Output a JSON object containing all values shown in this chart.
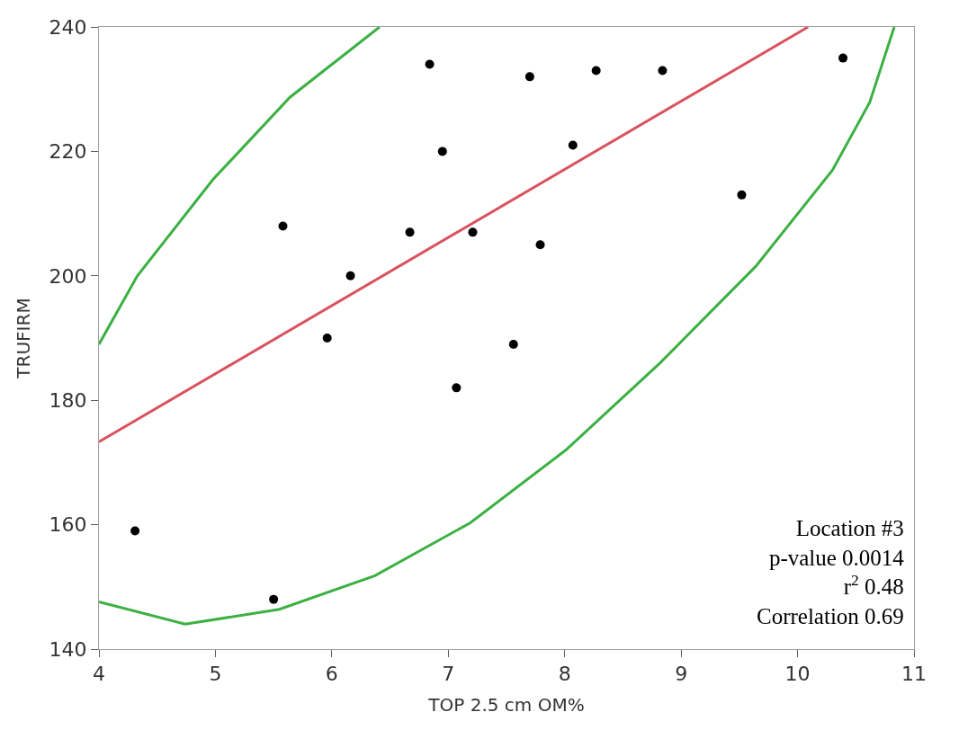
{
  "chart_data": {
    "type": "scatter",
    "xlabel": "TOP 2.5 cm OM%",
    "ylabel": "TRUFIRM",
    "xlim": [
      4,
      11
    ],
    "xticks": [
      4,
      5,
      6,
      7,
      8,
      9,
      10,
      11
    ],
    "ylim": [
      140,
      240
    ],
    "yticks": [
      140,
      160,
      180,
      200,
      220,
      240
    ],
    "series": [
      {
        "type": "line",
        "color": "#3cb043",
        "marker": "none",
        "x": [
          4,
          4.33,
          4.98,
          5.64,
          6.41,
          null,
          4,
          4.74,
          5.55,
          6.37,
          7.19,
          8.01,
          8.82,
          9.64,
          10.3,
          10.62,
          10.83
        ],
        "values": [
          189,
          200,
          215.5,
          228.7,
          240,
          null,
          147.6,
          144,
          146.4,
          151.8,
          160.3,
          172,
          186,
          201.5,
          217,
          227.9,
          240
        ]
      },
      {
        "type": "line",
        "color": "#d9535f",
        "marker": "none",
        "x": [
          4,
          10.09
        ],
        "values": [
          173.3,
          240
        ]
      },
      {
        "color": "#000000",
        "marker": "circle",
        "x": [
          4.31,
          5.5,
          5.58,
          5.96,
          6.16,
          6.67,
          6.84,
          6.95,
          7.07,
          7.21,
          7.56,
          7.7,
          7.79,
          8.07,
          8.27,
          8.84,
          9.52,
          10.39
        ],
        "values": [
          159,
          148,
          208,
          190,
          200,
          207,
          234,
          220,
          182,
          207,
          189,
          232,
          205,
          221,
          233,
          233,
          213,
          235
        ]
      }
    ],
    "annotations": [
      "Location #3",
      "p-value 0.0014",
      "r$^{2}$ 0.48",
      "Correlation 0.69"
    ]
  }
}
